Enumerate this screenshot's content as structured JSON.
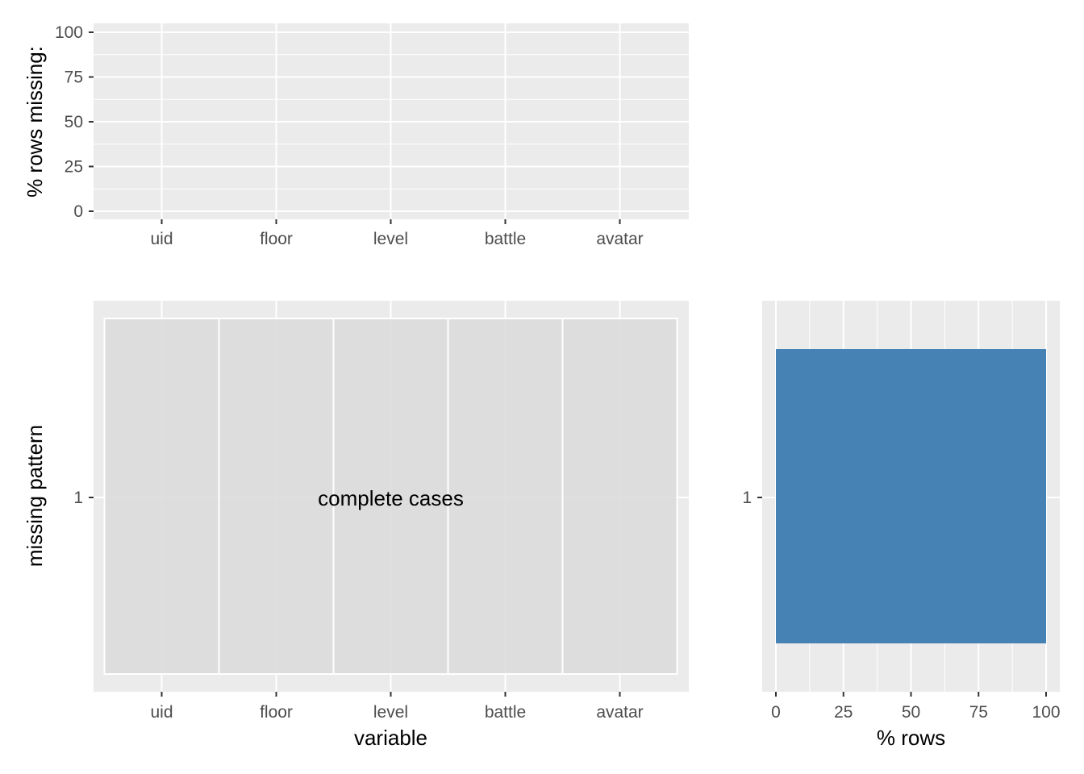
{
  "chart_data": [
    {
      "type": "bar",
      "panel": "top",
      "categories": [
        "uid",
        "floor",
        "level",
        "battle",
        "avatar"
      ],
      "values": [
        0,
        0,
        0,
        0,
        0
      ],
      "ylabel": "% rows missing:",
      "ylim": [
        0,
        100
      ],
      "yticks": [
        0,
        25,
        50,
        75,
        100
      ],
      "grid": true
    },
    {
      "type": "heatmap",
      "panel": "bottom-left",
      "categories": [
        "uid",
        "floor",
        "level",
        "battle",
        "avatar"
      ],
      "rows": [
        "1"
      ],
      "cells": [
        [
          "complete",
          "complete",
          "complete",
          "complete",
          "complete"
        ]
      ],
      "annotation": "complete cases",
      "xlabel": "variable",
      "ylabel": "missing pattern",
      "grid": true
    },
    {
      "type": "bar",
      "panel": "bottom-right",
      "orientation": "horizontal",
      "categories": [
        "1"
      ],
      "values": [
        100
      ],
      "xlabel": "% rows",
      "xlim": [
        0,
        100
      ],
      "xticks": [
        0,
        25,
        50,
        75,
        100
      ],
      "grid": true
    }
  ],
  "colors": {
    "panel_bg": "#ebebeb",
    "grid": "#ffffff",
    "tile": "#dadada",
    "bar": "#4682b4",
    "tick": "#333333"
  }
}
